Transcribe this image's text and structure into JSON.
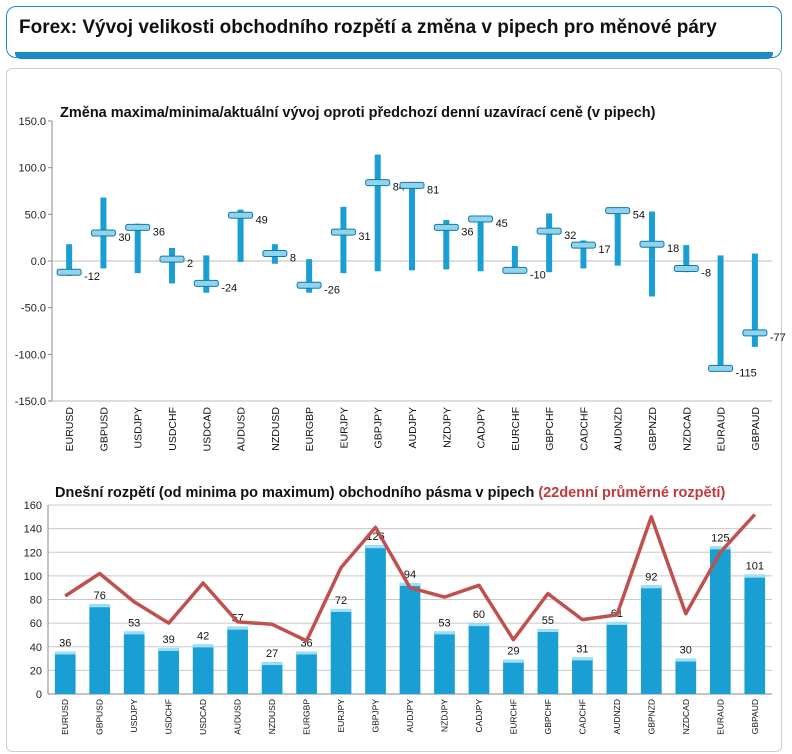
{
  "page_title": "Forex: Vývoj velikosti obchodního rozpětí a změna v pipech pro měnové páry",
  "chart_data": [
    {
      "type": "range",
      "title": "Změna maxima/minima/aktuální vývoj oproti předchozí denní uzavírací ceně (v pipech)",
      "categories": [
        "EURUSD",
        "GBPUSD",
        "USDJPY",
        "USDCHF",
        "USDCAD",
        "AUDUSD",
        "NZDUSD",
        "EURGBP",
        "EURJPY",
        "GBPJPY",
        "AUDJPY",
        "NZDJPY",
        "CADJPY",
        "EURCHF",
        "GBPCHF",
        "CADCHF",
        "AUDNZD",
        "GBPNZD",
        "NZDCAD",
        "EURAUD",
        "GBPAUD"
      ],
      "current": [
        -12,
        30,
        36,
        2,
        -24,
        49,
        8,
        -26,
        31,
        84,
        81,
        36,
        45,
        -10,
        32,
        17,
        54,
        18,
        -8,
        -115,
        -77
      ],
      "high": [
        18,
        68,
        40,
        14,
        6,
        55,
        18,
        2,
        58,
        114,
        84,
        44,
        48,
        16,
        51,
        22,
        57,
        53,
        17,
        6,
        8
      ],
      "low": [
        -16,
        -8,
        -13,
        -24,
        -34,
        -1,
        -3,
        -34,
        -13,
        -11,
        -10,
        -9,
        -11,
        -12,
        -12,
        -8,
        -5,
        -38,
        -12,
        -118,
        -92
      ],
      "ylim": [
        -150,
        150
      ],
      "yticks": [
        "150.0",
        "100.0",
        "50.0",
        "0.0",
        "-50.0",
        "-100.0",
        "-150.0"
      ],
      "color": "#1a9fd4"
    },
    {
      "type": "bar",
      "title": "Dnešní rozpětí (od minima po maximum) obchodního pásma v pipech",
      "title_highlight": "(22denní průměrné rozpětí)",
      "categories": [
        "EURUSD",
        "GBPUSD",
        "USDJPY",
        "USDCHF",
        "USDCAD",
        "AUDUSD",
        "NZDUSD",
        "EURGBP",
        "EURJPY",
        "GBPJPY",
        "AUDJPY",
        "NZDJPY",
        "CADJPY",
        "EURCHF",
        "GBPCHF",
        "CADCHF",
        "AUDNZD",
        "GBPNZD",
        "NZDCAD",
        "EURAUD",
        "GBPAUD"
      ],
      "values": [
        36,
        76,
        53,
        39,
        42,
        57,
        27,
        36,
        72,
        126,
        94,
        53,
        60,
        29,
        55,
        31,
        61,
        92,
        30,
        125,
        101
      ],
      "avg_22d": [
        83,
        102,
        78,
        60,
        94,
        61,
        59,
        45,
        107,
        141,
        90,
        82,
        92,
        46,
        85,
        63,
        67,
        150,
        68,
        120,
        152
      ],
      "ylim": [
        0,
        160
      ],
      "yticks": [
        "160",
        "140",
        "120",
        "100",
        "80",
        "60",
        "40",
        "20",
        "0"
      ],
      "bar_color": "#1a9fd4",
      "line_color": "#c0504d"
    }
  ]
}
